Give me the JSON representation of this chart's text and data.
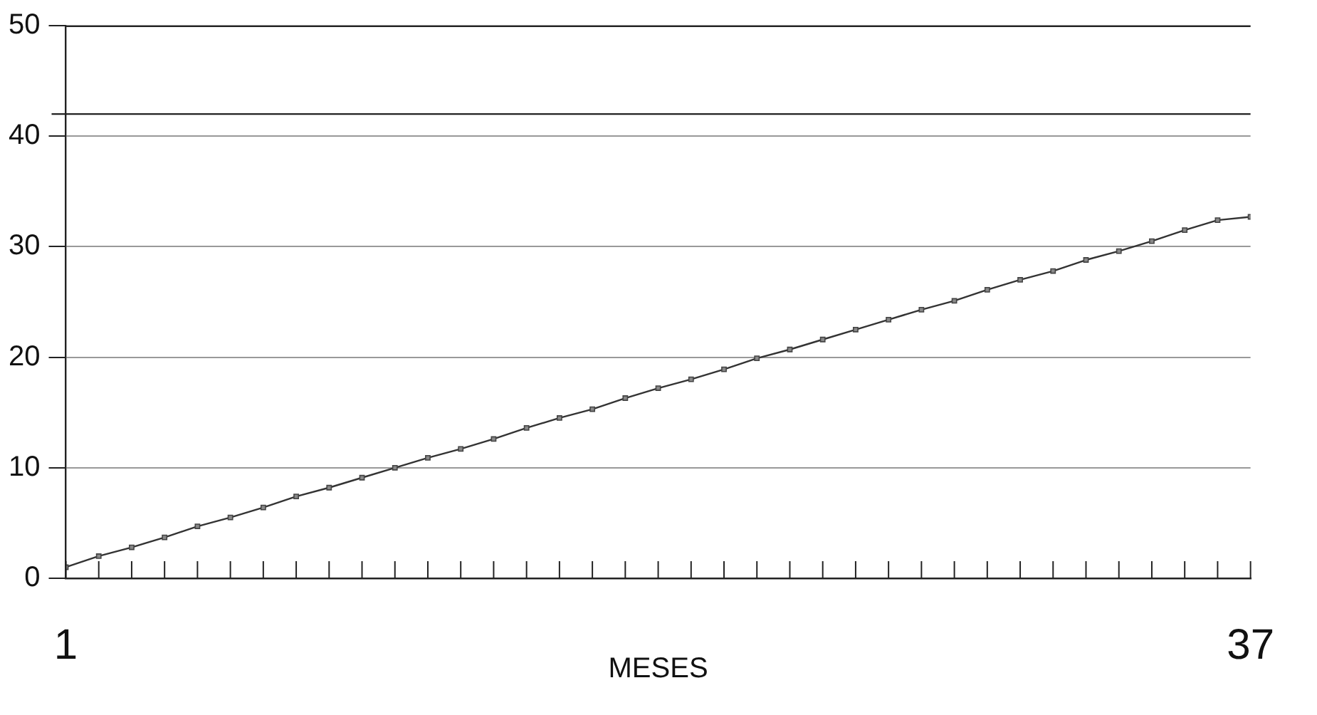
{
  "chart_data": {
    "type": "line",
    "xlabel": "MESES",
    "x": [
      1,
      2,
      3,
      4,
      5,
      6,
      7,
      8,
      9,
      10,
      11,
      12,
      13,
      14,
      15,
      16,
      17,
      18,
      19,
      20,
      21,
      22,
      23,
      24,
      25,
      26,
      27,
      28,
      29,
      30,
      31,
      32,
      33,
      34,
      35,
      36,
      37
    ],
    "series": [
      {
        "color": "#333333",
        "values": [
          1.0,
          2.0,
          2.8,
          3.7,
          4.7,
          5.5,
          6.4,
          7.4,
          8.2,
          9.1,
          10.0,
          10.9,
          11.7,
          12.6,
          13.6,
          14.5,
          15.3,
          16.3,
          17.2,
          18.0,
          18.9,
          19.9,
          20.7,
          21.6,
          22.5,
          23.4,
          24.3,
          25.1,
          26.1,
          27.0,
          27.8,
          28.8,
          29.6,
          30.5,
          31.5,
          32.4,
          32.7
        ]
      }
    ],
    "xlim": [
      1,
      37
    ],
    "xticks": [
      1,
      {
        "value": 2,
        "label": null
      },
      {
        "value": 3,
        "label": null
      },
      {
        "value": 4,
        "label": null
      },
      {
        "value": 5,
        "label": null
      },
      {
        "value": 6,
        "label": null
      },
      {
        "value": 7,
        "label": null
      },
      {
        "value": 8,
        "label": null
      },
      {
        "value": 9,
        "label": null
      },
      {
        "value": 10,
        "label": null
      },
      {
        "value": 11,
        "label": null
      },
      {
        "value": 12,
        "label": null
      },
      {
        "value": 13,
        "label": null
      },
      {
        "value": 14,
        "label": null
      },
      {
        "value": 15,
        "label": null
      },
      {
        "value": 16,
        "label": null
      },
      {
        "value": 17,
        "label": null
      },
      {
        "value": 18,
        "label": null
      },
      {
        "value": 19,
        "label": null
      },
      {
        "value": 20,
        "label": null
      },
      {
        "value": 21,
        "label": null
      },
      {
        "value": 22,
        "label": null
      },
      {
        "value": 23,
        "label": null
      },
      {
        "value": 24,
        "label": null
      },
      {
        "value": 25,
        "label": null
      },
      {
        "value": 26,
        "label": null
      },
      {
        "value": 27,
        "label": null
      },
      {
        "value": 28,
        "label": null
      },
      {
        "value": 29,
        "label": null
      },
      {
        "value": 30,
        "label": null
      },
      {
        "value": 31,
        "label": null
      },
      {
        "value": 32,
        "label": null
      },
      {
        "value": 33,
        "label": null
      },
      {
        "value": 34,
        "label": null
      },
      {
        "value": 35,
        "label": null
      },
      {
        "value": 36,
        "label": null
      },
      37
    ],
    "ylim": [
      0,
      50
    ],
    "yticks": [
      0,
      10,
      20,
      30,
      40,
      50
    ],
    "grid": "y",
    "marker": "square",
    "line_style": "solid",
    "ref_lines": [
      {
        "axis": "y",
        "value": 42,
        "color": "#222222",
        "line_style": "solid"
      }
    ]
  }
}
